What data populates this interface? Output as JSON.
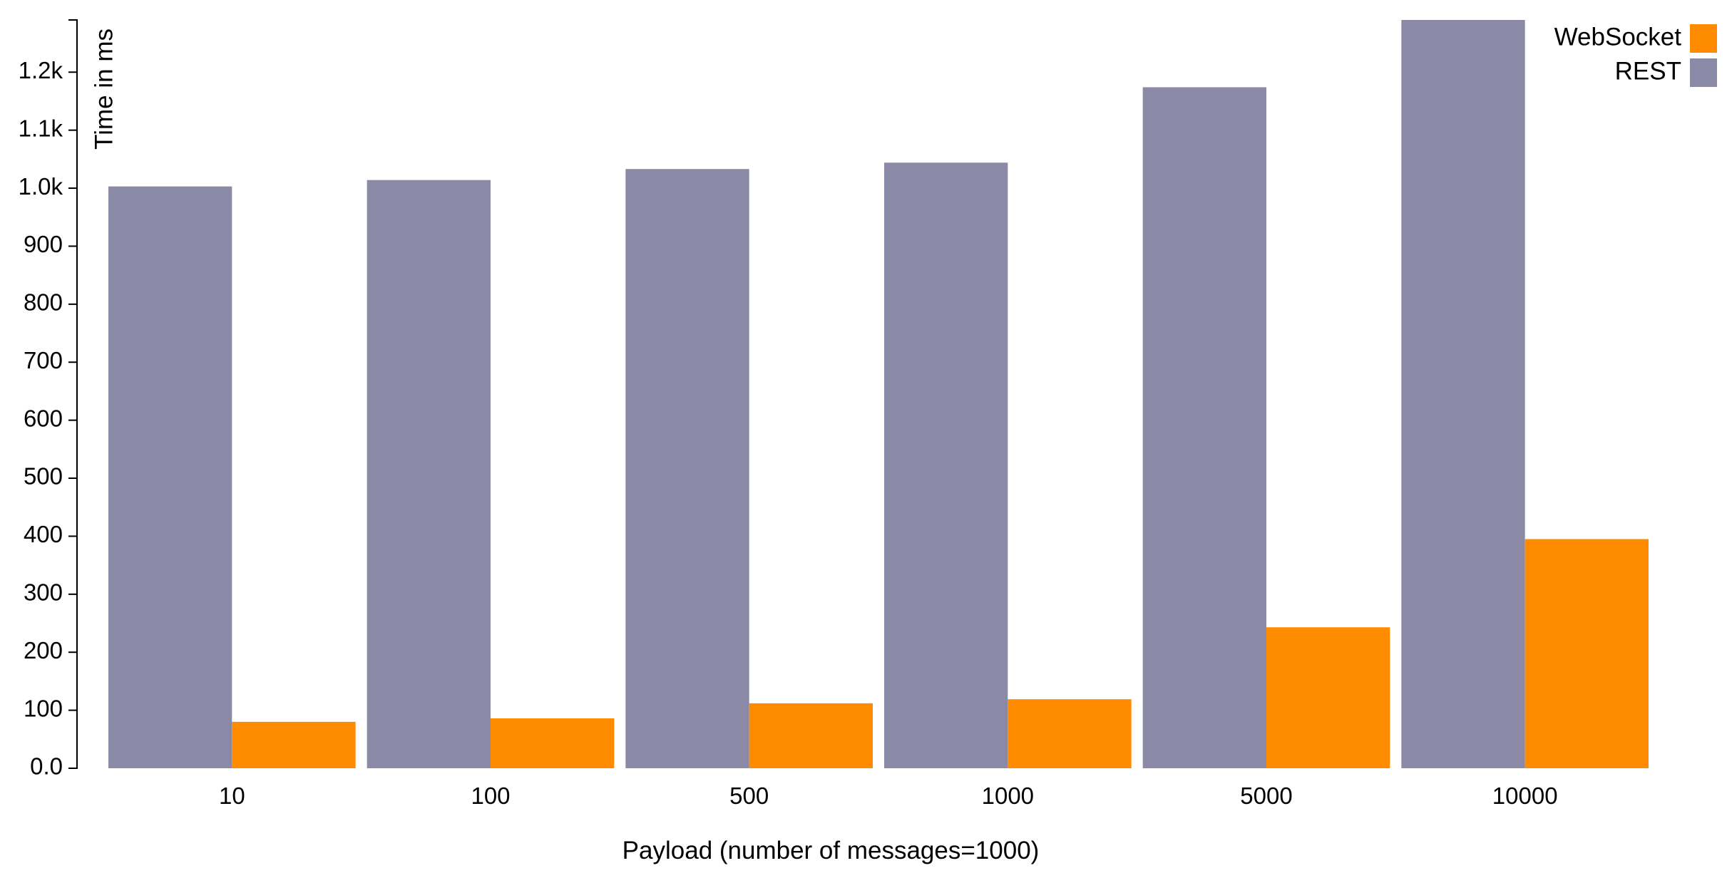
{
  "chart_data": {
    "type": "bar",
    "categories": [
      "10",
      "100",
      "500",
      "1000",
      "5000",
      "10000"
    ],
    "series": [
      {
        "name": "REST",
        "color": "#8a8aa6",
        "values": [
          1003,
          1014,
          1033,
          1044,
          1174,
          1290
        ]
      },
      {
        "name": "WebSocket",
        "color": "#ff8c00",
        "values": [
          80,
          86,
          112,
          119,
          243,
          395
        ]
      }
    ],
    "title": "",
    "xlabel": "Payload (number of messages=1000)",
    "ylabel": "Time in ms",
    "ylim": [
      0,
      1290
    ],
    "yticks": [
      0,
      100,
      200,
      300,
      400,
      500,
      600,
      700,
      800,
      900,
      1000,
      1100,
      1200
    ],
    "ytick_labels": [
      "0.0",
      "100",
      "200",
      "300",
      "400",
      "500",
      "600",
      "700",
      "800",
      "900",
      "1.0k",
      "1.1k",
      "1.2k"
    ],
    "legend": {
      "placement": "top-right",
      "entries": [
        {
          "label": "WebSocket",
          "color": "#ff8c00"
        },
        {
          "label": "REST",
          "color": "#8a8aa6"
        }
      ]
    },
    "grid": false
  }
}
